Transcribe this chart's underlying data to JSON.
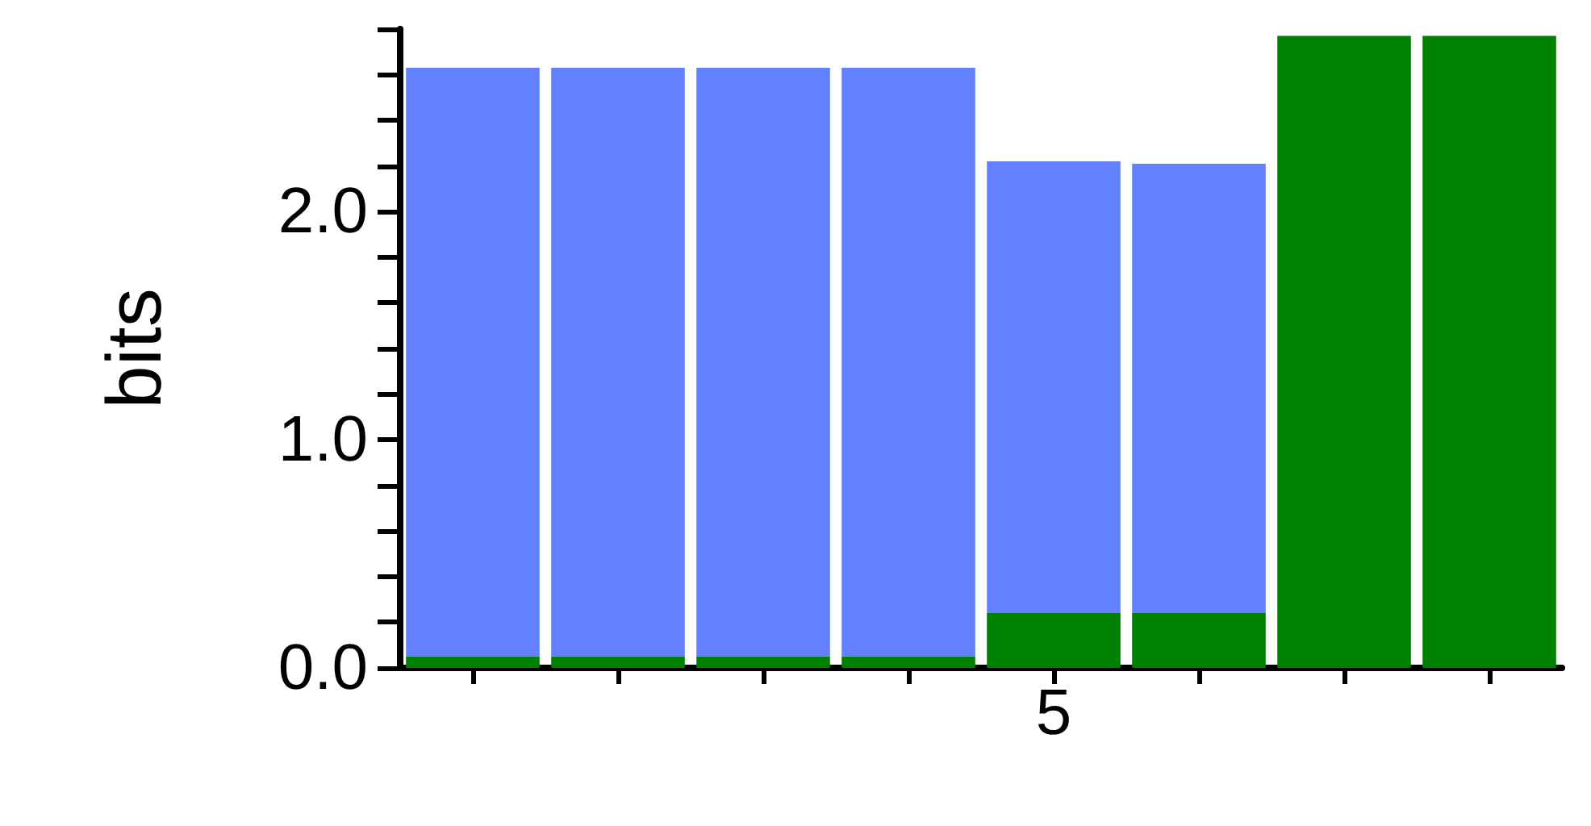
{
  "chart_data": {
    "type": "bar",
    "stacked": true,
    "ylabel": "bits",
    "categories": [
      null,
      null,
      null,
      null,
      "5",
      null,
      null,
      null
    ],
    "series": [
      {
        "color": "#008000",
        "values": [
          0.05,
          0.05,
          0.05,
          0.05,
          0.24,
          0.24,
          2.77,
          2.77
        ]
      },
      {
        "color": "#6280ff",
        "values": [
          2.58,
          2.58,
          2.58,
          2.58,
          1.98,
          1.97,
          0,
          0
        ]
      }
    ],
    "ylim": [
      0,
      2.8
    ],
    "yticks": [
      {
        "value": 0,
        "label": "0.0"
      },
      {
        "value": 0.2,
        "label": null
      },
      {
        "value": 0.4,
        "label": null
      },
      {
        "value": 0.6,
        "label": null
      },
      {
        "value": 0.8,
        "label": null
      },
      {
        "value": 1,
        "label": "1.0"
      },
      {
        "value": 1.2,
        "label": null
      },
      {
        "value": 1.4,
        "label": null
      },
      {
        "value": 1.6,
        "label": null
      },
      {
        "value": 1.8,
        "label": null
      },
      {
        "value": 2,
        "label": "2.0"
      },
      {
        "value": 2.2,
        "label": null
      },
      {
        "value": 2.4,
        "label": null
      },
      {
        "value": 2.6,
        "label": null
      },
      {
        "value": 2.8,
        "label": null
      }
    ],
    "grid": false
  }
}
